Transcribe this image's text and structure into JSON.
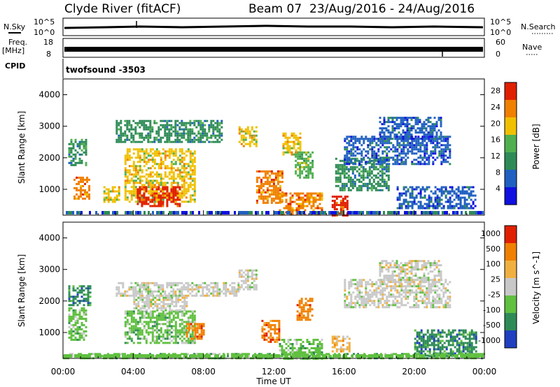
{
  "header": {
    "station": "Clyde River (fitACF)",
    "beam_label": "Beam 07",
    "date_range": "23/Aug/2016 - 24/Aug/2016"
  },
  "top_panels": {
    "nsky_label": "N.Sky",
    "nsky_ticks": [
      "10^5",
      "10^0"
    ],
    "nsearch_label": "N.Search",
    "nsearch_ticks": [
      "10^5",
      "10^0"
    ],
    "freq_label": "Freq.",
    "freq_unit": "[MHz]",
    "freq_ticks": [
      "18",
      "8"
    ],
    "nave_label": "Nave",
    "nave_ticks": [
      "60",
      "0"
    ],
    "cpid_label": "CPID",
    "cpid_value": "twofsound -3503"
  },
  "chart_data": [
    {
      "type": "heatmap",
      "name": "power",
      "ylabel": "Slant Range [km]",
      "xlabel": "",
      "ylim": [
        180,
        4500
      ],
      "yticks": [
        "1000",
        "2000",
        "3000",
        "4000"
      ],
      "colorbar": {
        "label": "Power [dB]",
        "ticks": [
          "4",
          "8",
          "12",
          "16",
          "20",
          "24",
          "28"
        ],
        "range": [
          0,
          30
        ],
        "colors": [
          "#1010e0",
          "#2060c0",
          "#2e8b57",
          "#50b050",
          "#f0c000",
          "#f08000",
          "#e02000"
        ]
      },
      "regions": [
        {
          "t0": 0.6,
          "t1": 1.5,
          "r0": 700,
          "r1": 1400,
          "level": 22
        },
        {
          "t0": 0.3,
          "t1": 1.3,
          "r0": 1800,
          "r1": 2600,
          "level": 10
        },
        {
          "t0": 2.3,
          "t1": 3.2,
          "r0": 600,
          "r1": 1100,
          "level": 20
        },
        {
          "t0": 3.5,
          "t1": 7.5,
          "r0": 600,
          "r1": 2300,
          "level": 20
        },
        {
          "t0": 4.2,
          "t1": 6.6,
          "r0": 500,
          "r1": 1100,
          "level": 27
        },
        {
          "t0": 3.0,
          "t1": 9.0,
          "r0": 2500,
          "r1": 3200,
          "level": 9
        },
        {
          "t0": 10.0,
          "t1": 11.0,
          "r0": 2400,
          "r1": 3000,
          "level": 18
        },
        {
          "t0": 11.0,
          "t1": 12.5,
          "r0": 600,
          "r1": 1600,
          "level": 22
        },
        {
          "t0": 12.3,
          "t1": 14.7,
          "r0": 180,
          "r1": 900,
          "level": 25
        },
        {
          "t0": 13.2,
          "t1": 14.2,
          "r0": 1400,
          "r1": 2200,
          "level": 16
        },
        {
          "t0": 12.5,
          "t1": 13.5,
          "r0": 2100,
          "r1": 2800,
          "level": 18
        },
        {
          "t0": 15.3,
          "t1": 16.2,
          "r0": 180,
          "r1": 800,
          "level": 26
        },
        {
          "t0": 15.5,
          "t1": 18.5,
          "r0": 1000,
          "r1": 2000,
          "level": 12
        },
        {
          "t0": 16.0,
          "t1": 22.0,
          "r0": 1800,
          "r1": 2700,
          "level": 7
        },
        {
          "t0": 18.0,
          "t1": 21.5,
          "r0": 2600,
          "r1": 3300,
          "level": 8
        },
        {
          "t0": 19.0,
          "t1": 23.5,
          "r0": 400,
          "r1": 1100,
          "level": 7
        }
      ]
    },
    {
      "type": "heatmap",
      "name": "velocity",
      "ylabel": "Slant Range [km]",
      "xlabel": "Time UT",
      "ylim": [
        180,
        4500
      ],
      "yticks": [
        "1000",
        "2000",
        "3000",
        "4000"
      ],
      "xticks": [
        "00:00",
        "04:00",
        "08:00",
        "12:00",
        "16:00",
        "20:00",
        "00:00"
      ],
      "colorbar": {
        "label": "Velocity [m s^-1]",
        "ticks": [
          "1000",
          "500",
          "100",
          "25",
          "-25",
          "-100",
          "-500",
          "-1000"
        ],
        "colors": [
          "#2040c0",
          "#2e8b57",
          "#60c040",
          "#c8c8c8",
          "#f0b040",
          "#f08000",
          "#e02000"
        ]
      },
      "regions": [
        {
          "t0": 0.3,
          "t1": 1.5,
          "r0": 1900,
          "r1": 2500,
          "level": 1
        },
        {
          "t0": 0.3,
          "t1": 1.3,
          "r0": 800,
          "r1": 1800,
          "level": 2
        },
        {
          "t0": 3.5,
          "t1": 7.5,
          "r0": 700,
          "r1": 1700,
          "level": 2
        },
        {
          "t0": 4.0,
          "t1": 7.0,
          "r0": 1700,
          "r1": 2200,
          "level": 3
        },
        {
          "t0": 7.0,
          "t1": 8.0,
          "r0": 800,
          "r1": 1300,
          "level": 5
        },
        {
          "t0": 3.0,
          "t1": 10.0,
          "r0": 2200,
          "r1": 2600,
          "level": 3
        },
        {
          "t0": 10.0,
          "t1": 11.0,
          "r0": 2400,
          "r1": 3000,
          "level": 3
        },
        {
          "t0": 11.3,
          "t1": 12.3,
          "r0": 700,
          "r1": 1400,
          "level": 5
        },
        {
          "t0": 12.3,
          "t1": 14.7,
          "r0": 200,
          "r1": 800,
          "level": 2
        },
        {
          "t0": 13.3,
          "t1": 14.2,
          "r0": 1400,
          "r1": 2100,
          "level": 5
        },
        {
          "t0": 15.3,
          "t1": 16.3,
          "r0": 400,
          "r1": 900,
          "level": 4
        },
        {
          "t0": 16.0,
          "t1": 22.0,
          "r0": 1800,
          "r1": 2700,
          "level": 3
        },
        {
          "t0": 18.0,
          "t1": 21.5,
          "r0": 2600,
          "r1": 3300,
          "level": 3
        },
        {
          "t0": 20.0,
          "t1": 23.5,
          "r0": 300,
          "r1": 1100,
          "level": 1
        },
        {
          "t0": 0.0,
          "t1": 24.0,
          "r0": 180,
          "r1": 350,
          "level": 2
        }
      ]
    }
  ]
}
